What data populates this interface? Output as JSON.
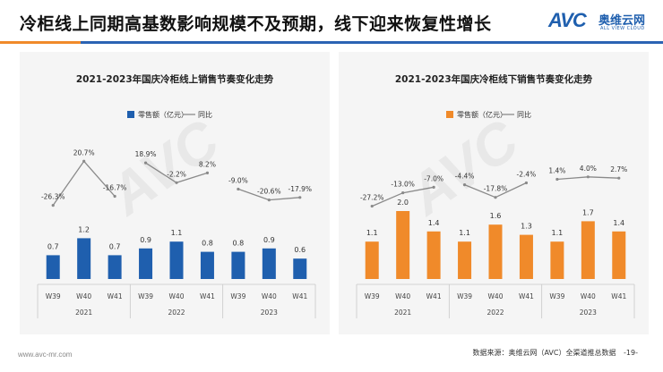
{
  "headline": "冷柜线上同期高基数影响规模不及预期，线下迎来恢复性增长",
  "logo": {
    "mark": "AVC",
    "name_cn": "奥维云网",
    "name_en": "ALL VIEW CLOUD"
  },
  "footer": {
    "url": "www.avc-mr.com",
    "source": "数据来源：奥维云网（AVC）全渠道推总数据",
    "page": "-19-"
  },
  "colors": {
    "online_bar": "#1f5fae",
    "offline_bar": "#f08a2a",
    "line": "#8a8a8a",
    "accent": "#2b63b3"
  },
  "chart_data": [
    {
      "type": "bar",
      "title": "2021-2023年国庆冷柜线上销售节奏变化走势",
      "categories": [
        "W39",
        "W40",
        "W41",
        "W39",
        "W40",
        "W41",
        "W39",
        "W40",
        "W41"
      ],
      "groups": [
        "2021",
        "2022",
        "2023"
      ],
      "series": [
        {
          "name": "零售额（亿元）",
          "kind": "bar",
          "values": [
            0.7,
            1.2,
            0.7,
            0.9,
            1.1,
            0.8,
            0.8,
            0.9,
            0.6
          ],
          "labels": [
            "0.7",
            "1.2",
            "0.7",
            "0.9",
            "1.1",
            "0.8",
            "0.8",
            "0.9",
            "0.6"
          ]
        },
        {
          "name": "同比",
          "kind": "line",
          "values": [
            -26.3,
            20.7,
            -16.7,
            18.9,
            -2.2,
            8.2,
            -9.0,
            -20.6,
            -17.9
          ],
          "labels": [
            "-26.3%",
            "20.7%",
            "-16.7%",
            "18.9%",
            "-2.2%",
            "8.2%",
            "-9.0%",
            "-20.6%",
            "-17.9%"
          ]
        }
      ],
      "legend_position": "top",
      "grid": false
    },
    {
      "type": "bar",
      "title": "2021-2023年国庆冷柜线下销售节奏变化走势",
      "categories": [
        "W39",
        "W40",
        "W41",
        "W39",
        "W40",
        "W41",
        "W39",
        "W40",
        "W41"
      ],
      "groups": [
        "2021",
        "2022",
        "2023"
      ],
      "series": [
        {
          "name": "零售额（亿元）",
          "kind": "bar",
          "values": [
            1.1,
            2.0,
            1.4,
            1.1,
            1.6,
            1.3,
            1.1,
            1.7,
            1.4
          ],
          "labels": [
            "1.1",
            "2.0",
            "1.4",
            "1.1",
            "1.6",
            "1.3",
            "1.1",
            "1.7",
            "1.4"
          ]
        },
        {
          "name": "同比",
          "kind": "line",
          "values": [
            -27.2,
            -13.0,
            -7.0,
            -4.4,
            -17.8,
            -2.4,
            1.4,
            4.0,
            2.7
          ],
          "labels": [
            "-27.2%",
            "-13.0%",
            "-7.0%",
            "-4.4%",
            "-17.8%",
            "-2.4%",
            "1.4%",
            "4.0%",
            "2.7%"
          ]
        }
      ],
      "legend_position": "top",
      "grid": false
    }
  ]
}
